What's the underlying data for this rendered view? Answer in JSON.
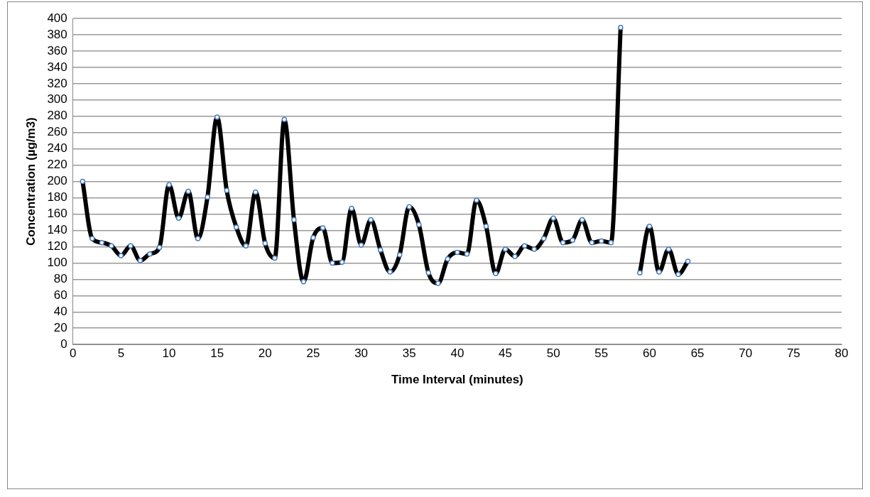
{
  "chart_data": {
    "type": "line",
    "xlabel": "Time Interval (minutes)",
    "ylabel": "Concentration (µg/m3)",
    "x": [
      1,
      2,
      3,
      4,
      5,
      6,
      7,
      8,
      9,
      10,
      11,
      12,
      13,
      14,
      15,
      16,
      17,
      18,
      19,
      20,
      21,
      22,
      23,
      24,
      25,
      26,
      27,
      28,
      29,
      30,
      31,
      32,
      33,
      34,
      35,
      36,
      37,
      38,
      39,
      40,
      41,
      42,
      43,
      44,
      45,
      46,
      47,
      48,
      49,
      50,
      51,
      52,
      53,
      54,
      55,
      56,
      57,
      58,
      59,
      60,
      61,
      62,
      63,
      64
    ],
    "series": [
      {
        "color": "#000000",
        "values": [
          200,
          130,
          125,
          121,
          109,
          121,
          103,
          111,
          119,
          196,
          155,
          188,
          130,
          181,
          279,
          189,
          144,
          121,
          187,
          124,
          106,
          276,
          153,
          77,
          131,
          143,
          100,
          101,
          167,
          122,
          153,
          116,
          89,
          110,
          169,
          147,
          88,
          75,
          105,
          113,
          111,
          177,
          145,
          87,
          117,
          108,
          121,
          117,
          130,
          155,
          125,
          128,
          153,
          125,
          127,
          125,
          389,
          null,
          88,
          145,
          89,
          117,
          86,
          102
        ]
      }
    ],
    "xlim": [
      0,
      80
    ],
    "xticks": [
      0,
      5,
      10,
      15,
      20,
      25,
      30,
      35,
      40,
      45,
      50,
      55,
      60,
      65,
      70,
      75,
      80
    ],
    "ylim": [
      0,
      400
    ],
    "yticks": [
      0,
      20,
      40,
      60,
      80,
      100,
      120,
      140,
      160,
      180,
      200,
      220,
      240,
      260,
      280,
      300,
      320,
      340,
      360,
      380,
      400
    ],
    "grid": "y",
    "legend": false,
    "marker": "circle",
    "line_style": "solid"
  }
}
